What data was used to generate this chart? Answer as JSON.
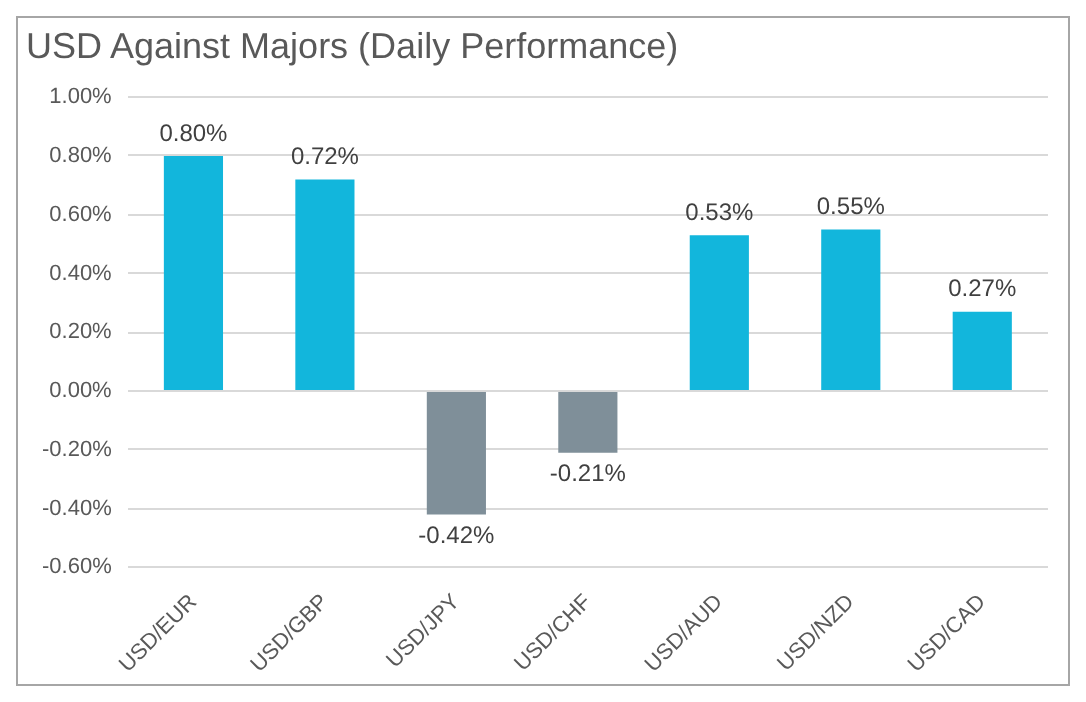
{
  "chart_data": {
    "type": "bar",
    "title": "USD Against Majors (Daily Performance)",
    "categories": [
      "USD/EUR",
      "USD/GBP",
      "USD/JPY",
      "USD/CHF",
      "USD/AUD",
      "USD/NZD",
      "USD/CAD"
    ],
    "values": [
      0.8,
      0.72,
      -0.42,
      -0.21,
      0.53,
      0.55,
      0.27
    ],
    "colors": [
      "#12b6dc",
      "#12b6dc",
      "#7f8f99",
      "#7f8f99",
      "#12b6dc",
      "#12b6dc",
      "#12b6dc"
    ],
    "value_labels": [
      "0.80%",
      "0.72%",
      "-0.42%",
      "-0.21%",
      "0.53%",
      "0.55%",
      "0.27%"
    ],
    "ylim": [
      -0.6,
      1.0
    ],
    "yticks": [
      {
        "value": 1.0,
        "label": "1.00%"
      },
      {
        "value": 0.8,
        "label": "0.80%"
      },
      {
        "value": 0.6,
        "label": "0.60%"
      },
      {
        "value": 0.4,
        "label": "0.40%"
      },
      {
        "value": 0.2,
        "label": "0.20%"
      },
      {
        "value": 0,
        "label": "0.00%"
      },
      {
        "value": -0.2,
        "label": "-0.20%"
      },
      {
        "value": -0.4,
        "label": "-0.40%"
      },
      {
        "value": -0.6,
        "label": "-0.60%"
      }
    ],
    "grid": "y"
  }
}
